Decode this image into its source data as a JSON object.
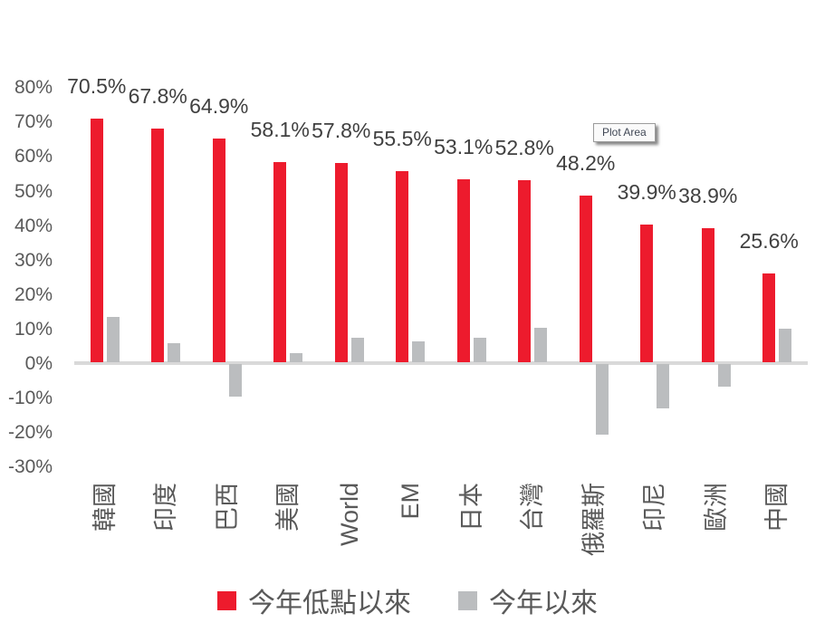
{
  "tooltip": {
    "label": "Plot Area"
  },
  "colors": {
    "series_red": "#ED1B2D",
    "series_gray": "#BBBDBF",
    "axis_line": "#D9D9D9",
    "tick_text": "#595959",
    "data_label_text": "#404040"
  },
  "chart_data": {
    "type": "bar",
    "title": "",
    "xlabel": "",
    "ylabel": "",
    "categories": [
      "韓國",
      "印度",
      "巴西",
      "美國",
      "World",
      "EM",
      "日本",
      "台灣",
      "俄羅斯",
      "印尼",
      "歐洲",
      "中國"
    ],
    "series": [
      {
        "name": "今年低點以來",
        "color": "#ED1B2D",
        "values": [
          70.5,
          67.8,
          64.9,
          58.1,
          57.8,
          55.5,
          53.1,
          52.8,
          48.2,
          39.9,
          38.9,
          25.6
        ],
        "labels": [
          "70.5%",
          "67.8%",
          "64.9%",
          "58.1%",
          "57.8%",
          "55.5%",
          "53.1%",
          "52.8%",
          "48.2%",
          "39.9%",
          "38.9%",
          "25.6%"
        ]
      },
      {
        "name": "今年以來",
        "color": "#BBBDBF",
        "values": [
          13.0,
          5.5,
          -9.4,
          2.6,
          7.0,
          6.0,
          7.0,
          10.0,
          -20.4,
          -12.8,
          -6.5,
          9.6
        ],
        "values_estimated": true
      }
    ],
    "ylim": [
      -30,
      80
    ],
    "ytick_values": [
      80,
      70,
      60,
      50,
      40,
      30,
      20,
      10,
      0,
      -10,
      -20,
      -30
    ],
    "ytick_labels": [
      "80%",
      "70%",
      "60%",
      "50%",
      "40%",
      "30%",
      "20%",
      "10%",
      "0%",
      "-10%",
      "-20%",
      "-30%"
    ],
    "grid": false,
    "legend_position": "bottom",
    "category_label_rotation": -90
  }
}
